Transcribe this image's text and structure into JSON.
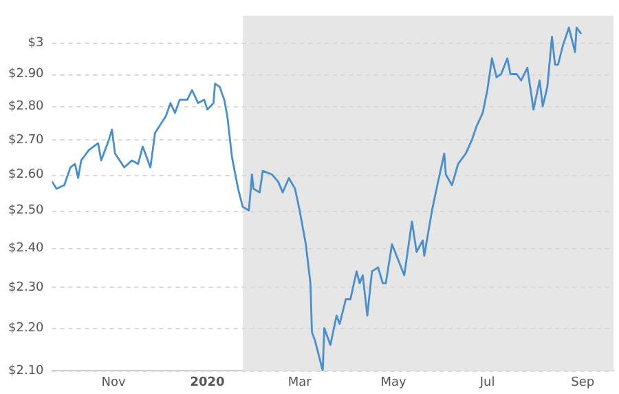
{
  "chart_data": {
    "type": "line",
    "log": "y",
    "grid": "y",
    "legend": false,
    "marker": "none",
    "line_style": "solid",
    "xlim": [
      "2019-09-22",
      "2020-09-21"
    ],
    "xticks": [
      {
        "value": "2019-11-01",
        "label": "Nov"
      },
      {
        "value": "2020-01-01",
        "label": "2020"
      },
      {
        "value": "2020-03-01",
        "label": "Mar"
      },
      {
        "value": "2020-05-01",
        "label": "May"
      },
      {
        "value": "2020-07-01",
        "label": "Jul"
      },
      {
        "value": "2020-09-01",
        "label": "Sep"
      }
    ],
    "ylim": [
      2.1,
      3.09
    ],
    "yticks": [
      {
        "value": 2.1,
        "label": "$2.10"
      },
      {
        "value": 2.2,
        "label": "$2.20"
      },
      {
        "value": 2.3,
        "label": "$2.30"
      },
      {
        "value": 2.4,
        "label": "$2.40"
      },
      {
        "value": 2.5,
        "label": "$2.50"
      },
      {
        "value": 2.6,
        "label": "$2.60"
      },
      {
        "value": 2.7,
        "label": "$2.70"
      },
      {
        "value": 2.8,
        "label": "$2.80"
      },
      {
        "value": 2.9,
        "label": "$2.90"
      },
      {
        "value": 3,
        "label": "$3"
      }
    ],
    "bands": [
      {
        "axis": "x",
        "from": "2020-01-24",
        "to": "2020-09-21",
        "color": "#e6e6e6"
      }
    ],
    "series": [
      {
        "color": "#4a8fcc",
        "x": [
          "2019-09-22",
          "2019-09-25",
          "2019-09-30",
          "2019-10-04",
          "2019-10-07",
          "2019-10-09",
          "2019-10-11",
          "2019-10-16",
          "2019-10-22",
          "2019-10-24",
          "2019-10-29",
          "2019-10-31",
          "2019-11-02",
          "2019-11-08",
          "2019-11-13",
          "2019-11-17",
          "2019-11-20",
          "2019-11-25",
          "2019-11-28",
          "2019-12-05",
          "2019-12-08",
          "2019-12-11",
          "2019-12-14",
          "2019-12-19",
          "2019-12-22",
          "2019-12-26",
          "2019-12-30",
          "2020-01-01",
          "2020-01-05",
          "2020-01-06",
          "2020-01-09",
          "2020-01-12",
          "2020-01-14",
          "2020-01-17",
          "2020-01-21",
          "2020-01-24",
          "2020-01-28",
          "2020-01-30",
          "2020-01-31",
          "2020-02-04",
          "2020-02-06",
          "2020-02-12",
          "2020-02-16",
          "2020-02-19",
          "2020-02-23",
          "2020-02-27",
          "2020-03-01",
          "2020-03-05",
          "2020-03-08",
          "2020-03-09",
          "2020-03-11",
          "2020-03-16",
          "2020-03-17",
          "2020-03-21",
          "2020-03-25",
          "2020-03-27",
          "2020-03-31",
          "2020-04-03",
          "2020-04-07",
          "2020-04-09",
          "2020-04-11",
          "2020-04-14",
          "2020-04-17",
          "2020-04-21",
          "2020-04-24",
          "2020-04-26",
          "2020-04-30",
          "2020-05-03",
          "2020-05-08",
          "2020-05-13",
          "2020-05-16",
          "2020-05-20",
          "2020-05-21",
          "2020-05-26",
          "2020-05-29",
          "2020-06-03",
          "2020-06-04",
          "2020-06-08",
          "2020-06-12",
          "2020-06-17",
          "2020-06-21",
          "2020-06-24",
          "2020-06-28",
          "2020-07-01",
          "2020-07-04",
          "2020-07-07",
          "2020-07-10",
          "2020-07-14",
          "2020-07-16",
          "2020-07-20",
          "2020-07-23",
          "2020-07-27",
          "2020-07-31",
          "2020-08-04",
          "2020-08-06",
          "2020-08-09",
          "2020-08-12",
          "2020-08-14",
          "2020-08-16",
          "2020-08-19",
          "2020-08-23",
          "2020-08-27",
          "2020-08-28",
          "2020-08-31"
        ],
        "values": [
          2.58,
          2.56,
          2.57,
          2.62,
          2.63,
          2.59,
          2.64,
          2.67,
          2.69,
          2.64,
          2.7,
          2.73,
          2.66,
          2.62,
          2.64,
          2.63,
          2.68,
          2.62,
          2.72,
          2.77,
          2.81,
          2.78,
          2.82,
          2.82,
          2.85,
          2.81,
          2.82,
          2.79,
          2.81,
          2.87,
          2.86,
          2.82,
          2.77,
          2.65,
          2.56,
          2.51,
          2.5,
          2.6,
          2.56,
          2.55,
          2.61,
          2.6,
          2.58,
          2.55,
          2.59,
          2.56,
          2.5,
          2.41,
          2.31,
          2.19,
          2.17,
          2.1,
          2.2,
          2.16,
          2.23,
          2.21,
          2.27,
          2.27,
          2.34,
          2.31,
          2.33,
          2.23,
          2.34,
          2.35,
          2.31,
          2.31,
          2.41,
          2.38,
          2.33,
          2.47,
          2.39,
          2.42,
          2.38,
          2.5,
          2.56,
          2.66,
          2.6,
          2.57,
          2.63,
          2.66,
          2.7,
          2.74,
          2.78,
          2.85,
          2.95,
          2.89,
          2.9,
          2.95,
          2.9,
          2.9,
          2.88,
          2.92,
          2.79,
          2.88,
          2.8,
          2.86,
          3.02,
          2.93,
          2.93,
          2.99,
          3.05,
          2.97,
          3.05,
          3.03
        ]
      }
    ]
  }
}
